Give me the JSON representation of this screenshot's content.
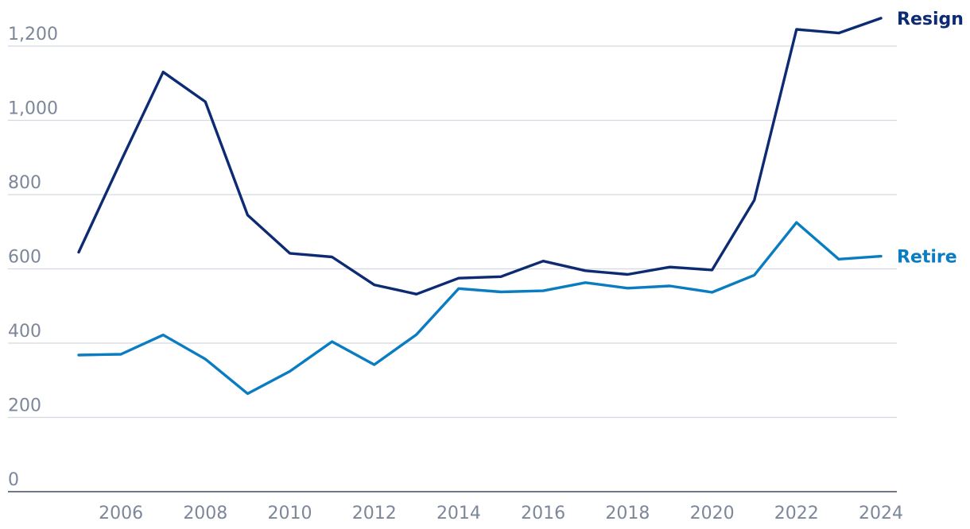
{
  "chart_data": {
    "type": "line",
    "title": "",
    "xlabel": "",
    "ylabel": "",
    "x": [
      2005,
      2006,
      2007,
      2008,
      2009,
      2010,
      2011,
      2012,
      2013,
      2014,
      2015,
      2016,
      2017,
      2018,
      2019,
      2020,
      2021,
      2022,
      2023,
      2024
    ],
    "x_ticks": [
      "2006",
      "2008",
      "2010",
      "2012",
      "2014",
      "2016",
      "2018",
      "2020",
      "2022",
      "2024"
    ],
    "y_ticks": [
      "0",
      "200",
      "400",
      "600",
      "800",
      "1,000",
      "1,200"
    ],
    "ylim": [
      0,
      1200
    ],
    "grid": true,
    "legend": "inline-right",
    "series": [
      {
        "name": "Resign",
        "color": "#0c2b72",
        "values": [
          645,
          890,
          1130,
          1050,
          745,
          642,
          632,
          557,
          532,
          575,
          579,
          621,
          595,
          585,
          605,
          597,
          785,
          1245,
          1235,
          1275
        ]
      },
      {
        "name": "Retire",
        "color": "#0a7cc1",
        "values": [
          368,
          370,
          422,
          357,
          264,
          324,
          404,
          342,
          423,
          547,
          538,
          541,
          563,
          548,
          554,
          537,
          583,
          725,
          626,
          634
        ]
      }
    ]
  }
}
